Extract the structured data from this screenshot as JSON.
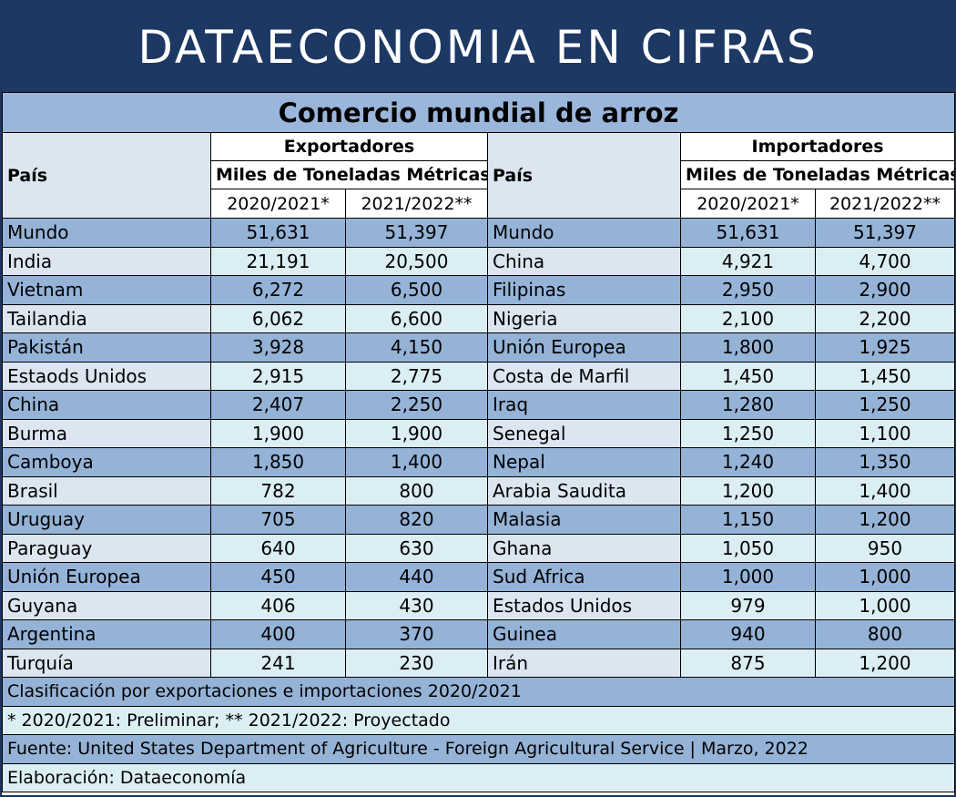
{
  "banner": "DATAECONOMIA EN CIFRAS",
  "title": "Comercio mundial de arroz",
  "exporters_header": "Exportadores",
  "importers_header": "Importadores",
  "units": "Miles de Toneladas Métricas",
  "country_header": "País",
  "col_2021": "2020/2021*",
  "col_2022": "2021/2022**",
  "rows": [
    {
      "exp_country": "Mundo",
      "exp_2021": "51,631",
      "exp_2022": "51,397",
      "imp_country": "Mundo",
      "imp_2021": "51,631",
      "imp_2022": "51,397"
    },
    {
      "exp_country": "India",
      "exp_2021": "21,191",
      "exp_2022": "20,500",
      "imp_country": "China",
      "imp_2021": "4,921",
      "imp_2022": "4,700"
    },
    {
      "exp_country": "Vietnam",
      "exp_2021": "6,272",
      "exp_2022": "6,500",
      "imp_country": "Filipinas",
      "imp_2021": "2,950",
      "imp_2022": "2,900"
    },
    {
      "exp_country": "Tailandia",
      "exp_2021": "6,062",
      "exp_2022": "6,600",
      "imp_country": "Nigeria",
      "imp_2021": "2,100",
      "imp_2022": "2,200"
    },
    {
      "exp_country": "Pakistán",
      "exp_2021": "3,928",
      "exp_2022": "4,150",
      "imp_country": "Unión Europea",
      "imp_2021": "1,800",
      "imp_2022": "1,925"
    },
    {
      "exp_country": "Estaods Unidos",
      "exp_2021": "2,915",
      "exp_2022": "2,775",
      "imp_country": "Costa de Marfil",
      "imp_2021": "1,450",
      "imp_2022": "1,450"
    },
    {
      "exp_country": "China",
      "exp_2021": "2,407",
      "exp_2022": "2,250",
      "imp_country": "Iraq",
      "imp_2021": "1,280",
      "imp_2022": "1,250"
    },
    {
      "exp_country": "Burma",
      "exp_2021": "1,900",
      "exp_2022": "1,900",
      "imp_country": "Senegal",
      "imp_2021": "1,250",
      "imp_2022": "1,100"
    },
    {
      "exp_country": "Camboya",
      "exp_2021": "1,850",
      "exp_2022": "1,400",
      "imp_country": "Nepal",
      "imp_2021": "1,240",
      "imp_2022": "1,350"
    },
    {
      "exp_country": "Brasil",
      "exp_2021": "782",
      "exp_2022": "800",
      "imp_country": "Arabia Saudita",
      "imp_2021": "1,200",
      "imp_2022": "1,400"
    },
    {
      "exp_country": "Uruguay",
      "exp_2021": "705",
      "exp_2022": "820",
      "imp_country": "Malasia",
      "imp_2021": "1,150",
      "imp_2022": "1,200"
    },
    {
      "exp_country": "Paraguay",
      "exp_2021": "640",
      "exp_2022": "630",
      "imp_country": "Ghana",
      "imp_2021": "1,050",
      "imp_2022": "950"
    },
    {
      "exp_country": "Unión Europea",
      "exp_2021": "450",
      "exp_2022": "440",
      "imp_country": "Sud Africa",
      "imp_2021": "1,000",
      "imp_2022": "1,000"
    },
    {
      "exp_country": "Guyana",
      "exp_2021": "406",
      "exp_2022": "430",
      "imp_country": "Estados Unidos",
      "imp_2021": "979",
      "imp_2022": "1,000"
    },
    {
      "exp_country": "Argentina",
      "exp_2021": "400",
      "exp_2022": "370",
      "imp_country": "Guinea",
      "imp_2021": "940",
      "imp_2022": "800"
    },
    {
      "exp_country": "Turquía",
      "exp_2021": "241",
      "exp_2022": "230",
      "imp_country": "Irán",
      "imp_2021": "875",
      "imp_2022": "1,200"
    }
  ],
  "notes": [
    "Clasificación por exportaciones e importaciones 2020/2021",
    "* 2020/2021: Preliminar; ** 2021/2022: Proyectado",
    "Fuente: United States Department of Agriculture - Foreign Agricultural Service | Marzo, 2022",
    "Elaboración: Dataeconomía"
  ]
}
